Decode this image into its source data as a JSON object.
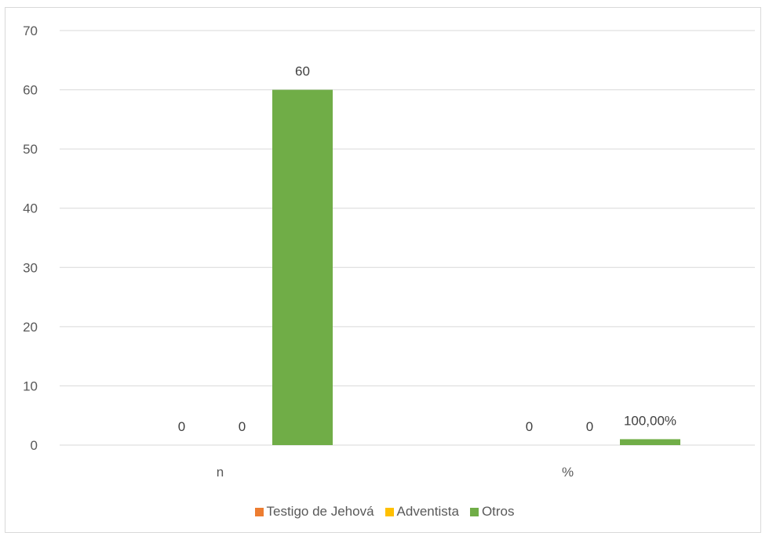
{
  "chart_data": {
    "type": "bar",
    "categories": [
      "n",
      "%"
    ],
    "series": [
      {
        "name": "Testigo de Jehová",
        "values": [
          0,
          0
        ],
        "labels": [
          "0",
          "0"
        ],
        "color": "#ed7d31"
      },
      {
        "name": "Adventista",
        "values": [
          0,
          0
        ],
        "labels": [
          "0",
          "0"
        ],
        "color": "#ffc000"
      },
      {
        "name": "Otros",
        "values": [
          60,
          1
        ],
        "labels": [
          "60",
          "100,00%"
        ],
        "color": "#70ad47"
      }
    ],
    "ylim": [
      0,
      70
    ],
    "yticks": [
      0,
      10,
      20,
      30,
      40,
      50,
      60,
      70
    ],
    "grid": true,
    "legend": "bottom"
  }
}
